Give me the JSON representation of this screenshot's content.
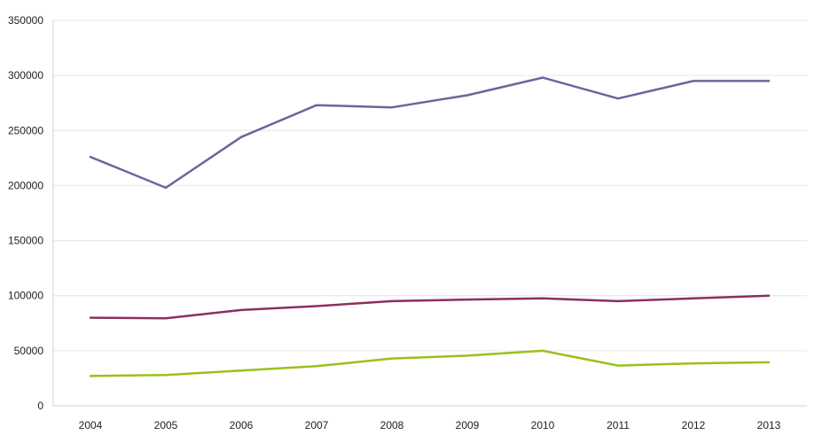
{
  "chart_data": {
    "type": "line",
    "title": "",
    "xlabel": "",
    "ylabel": "",
    "categories": [
      "2004",
      "2005",
      "2006",
      "2007",
      "2008",
      "2009",
      "2010",
      "2011",
      "2012",
      "2013"
    ],
    "ylim": [
      0,
      350000
    ],
    "y_ticks": [
      "0",
      "50000",
      "100000",
      "150000",
      "200000",
      "250000",
      "300000",
      "350000"
    ],
    "grid": true,
    "legend": "none",
    "series": [
      {
        "color": "#6b6699",
        "values": [
          226000,
          198000,
          244000,
          273000,
          271000,
          282000,
          298000,
          279000,
          295000,
          295000
        ]
      },
      {
        "color": "#8b2f5f",
        "values": [
          80000,
          79500,
          87000,
          90500,
          95000,
          96500,
          97500,
          95000,
          97500,
          100000
        ]
      },
      {
        "color": "#99c21a",
        "values": [
          27000,
          28000,
          32000,
          36000,
          43000,
          45500,
          50000,
          36500,
          38500,
          39500
        ]
      }
    ]
  }
}
